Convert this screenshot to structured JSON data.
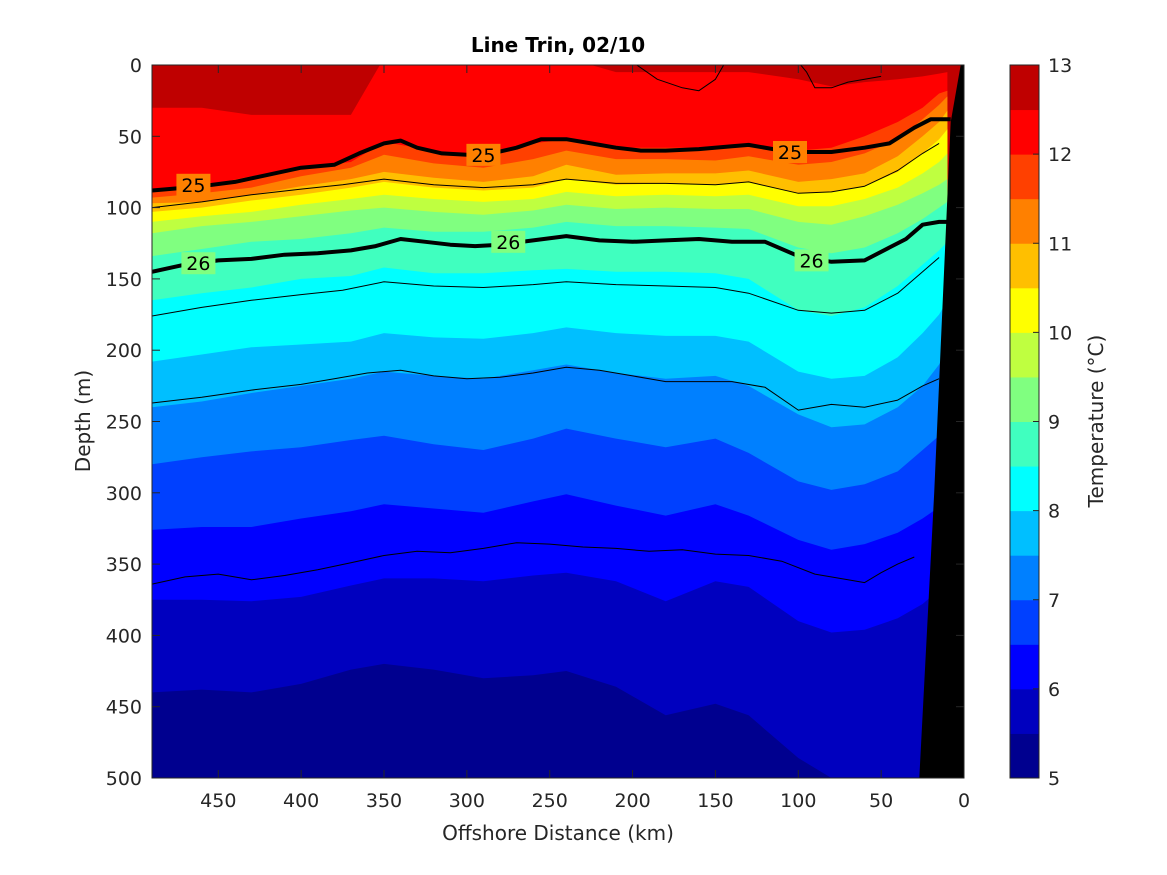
{
  "chart_data": {
    "type": "contourf",
    "title": "Line Trin, 02/10",
    "xlabel": "Offshore Distance (km)",
    "ylabel": "Depth (m)",
    "colorbar_label": "Temperature (°C)",
    "xlim": [
      490,
      0
    ],
    "x_reversed": true,
    "ylim": [
      0,
      500
    ],
    "y_reversed": true,
    "xticks": [
      450,
      400,
      350,
      300,
      250,
      200,
      150,
      100,
      50,
      0
    ],
    "yticks": [
      0,
      50,
      100,
      150,
      200,
      250,
      300,
      350,
      400,
      450,
      500
    ],
    "colorbar": {
      "min": 5,
      "max": 13,
      "step": 0.5,
      "ticks": [
        5,
        6,
        7,
        8,
        9,
        10,
        11,
        12,
        13
      ],
      "colormap": [
        "#00008f",
        "#0000bf",
        "#0000ff",
        "#0040ff",
        "#0080ff",
        "#00bfff",
        "#00ffff",
        "#40ffbf",
        "#80ff80",
        "#bfff40",
        "#ffff00",
        "#ffbf00",
        "#ff8000",
        "#ff4000",
        "#ff0000",
        "#bf0000"
      ]
    },
    "temperature_isotherms": {
      "distances": [
        490,
        460,
        430,
        400,
        370,
        350,
        320,
        290,
        260,
        240,
        210,
        180,
        150,
        130,
        100,
        80,
        60,
        40,
        25,
        15,
        10
      ],
      "levels": [
        {
          "value": 12.0,
          "depths": [
            30,
            30,
            35,
            35,
            35,
            -5,
            -5,
            -5,
            -5,
            -5,
            5,
            5,
            5,
            5,
            10,
            15,
            12,
            10,
            8,
            6,
            5
          ]
        },
        {
          "value": 11.5,
          "depths": [
            88,
            85,
            78,
            72,
            68,
            54,
            60,
            65,
            55,
            52,
            58,
            58,
            58,
            56,
            60,
            58,
            50,
            40,
            30,
            20,
            18
          ]
        },
        {
          "value": 11.0,
          "depths": [
            93,
            90,
            86,
            78,
            72,
            63,
            69,
            72,
            66,
            60,
            66,
            66,
            67,
            64,
            70,
            68,
            62,
            52,
            38,
            28,
            22
          ]
        },
        {
          "value": 10.5,
          "depths": [
            97,
            96,
            91,
            85,
            80,
            75,
            79,
            82,
            78,
            70,
            77,
            76,
            76,
            74,
            82,
            80,
            76,
            64,
            50,
            40,
            32
          ]
        },
        {
          "value": 10.0,
          "depths": [
            103,
            100,
            95,
            91,
            86,
            82,
            86,
            88,
            86,
            80,
            84,
            83,
            84,
            82,
            90,
            89,
            85,
            75,
            62,
            52,
            45
          ]
        },
        {
          "value": 9.5,
          "depths": [
            110,
            106,
            103,
            98,
            94,
            91,
            94,
            96,
            94,
            89,
            92,
            91,
            92,
            91,
            99,
            99,
            94,
            86,
            76,
            68,
            62
          ]
        },
        {
          "value": 9.0,
          "depths": [
            118,
            113,
            110,
            106,
            102,
            100,
            103,
            105,
            102,
            98,
            101,
            100,
            101,
            101,
            110,
            112,
            106,
            98,
            90,
            84,
            80
          ]
        },
        {
          "value": 8.5,
          "depths": [
            134,
            129,
            124,
            122,
            118,
            114,
            117,
            117,
            114,
            110,
            113,
            113,
            114,
            115,
            128,
            132,
            128,
            118,
            108,
            100,
            96
          ]
        },
        {
          "value": 8.0,
          "depths": [
            165,
            160,
            156,
            150,
            148,
            142,
            146,
            146,
            144,
            143,
            145,
            145,
            146,
            150,
            172,
            176,
            170,
            155,
            140,
            130,
            124
          ]
        },
        {
          "value": 7.5,
          "depths": [
            208,
            203,
            198,
            196,
            194,
            188,
            191,
            192,
            188,
            184,
            188,
            190,
            190,
            194,
            215,
            220,
            218,
            205,
            188,
            175,
            165
          ]
        },
        {
          "value": 7.0,
          "depths": [
            240,
            236,
            230,
            225,
            220,
            215,
            218,
            220,
            214,
            210,
            216,
            220,
            218,
            225,
            245,
            254,
            252,
            240,
            225,
            210,
            200
          ]
        },
        {
          "value": 6.5,
          "depths": [
            280,
            275,
            271,
            268,
            263,
            260,
            266,
            270,
            262,
            255,
            262,
            268,
            262,
            272,
            292,
            298,
            294,
            285,
            270,
            260,
            250
          ]
        },
        {
          "value": 6.0,
          "depths": [
            326,
            324,
            324,
            318,
            313,
            308,
            311,
            314,
            306,
            301,
            309,
            316,
            308,
            316,
            333,
            340,
            336,
            328,
            318,
            310,
            305
          ]
        },
        {
          "value": 5.5,
          "depths": [
            375,
            375,
            376,
            373,
            365,
            360,
            360,
            362,
            358,
            356,
            362,
            376,
            362,
            366,
            390,
            398,
            396,
            388,
            378,
            368,
            362
          ]
        },
        {
          "value": 5.0,
          "depths": [
            440,
            438,
            440,
            434,
            424,
            420,
            424,
            430,
            428,
            425,
            436,
            456,
            448,
            456,
            486,
            500,
            510,
            510,
            510,
            510,
            510
          ]
        }
      ]
    },
    "density_contours": {
      "levels": [
        {
          "label": "25",
          "labeled": true,
          "x": [
            490,
            460,
            440,
            420,
            400,
            380,
            365,
            350,
            340,
            330,
            315,
            300,
            285,
            270,
            255,
            240,
            225,
            210,
            195,
            180,
            160,
            140,
            130,
            110,
            95,
            80,
            60,
            45,
            30,
            20,
            8
          ],
          "depth": [
            88,
            85,
            82,
            77,
            72,
            70,
            62,
            55,
            53,
            58,
            62,
            63,
            62,
            58,
            52,
            52,
            55,
            58,
            60,
            60,
            59,
            57,
            56,
            60,
            61,
            61,
            58,
            55,
            44,
            38,
            38
          ],
          "label_x": [
            465,
            290,
            105
          ],
          "label_y": [
            84,
            63,
            61
          ]
        },
        {
          "label": "26",
          "labeled": true,
          "x": [
            490,
            470,
            450,
            430,
            410,
            390,
            370,
            355,
            340,
            325,
            310,
            295,
            280,
            260,
            240,
            220,
            200,
            180,
            160,
            140,
            120,
            100,
            80,
            60,
            45,
            35,
            25,
            15,
            8
          ],
          "depth": [
            145,
            140,
            137,
            136,
            133,
            132,
            130,
            127,
            122,
            124,
            126,
            127,
            126,
            123,
            120,
            123,
            124,
            123,
            122,
            124,
            124,
            134,
            138,
            137,
            128,
            122,
            112,
            110,
            110
          ],
          "label_x": [
            462,
            275,
            92
          ],
          "label_y": [
            139,
            124,
            137
          ]
        },
        {
          "label": "",
          "labeled": false,
          "x": [
            490,
            460,
            430,
            400,
            375,
            350,
            320,
            290,
            260,
            240,
            210,
            180,
            150,
            130,
            100,
            80,
            60,
            40,
            25,
            15
          ],
          "depth": [
            100,
            96,
            91,
            87,
            84,
            80,
            84,
            86,
            84,
            80,
            83,
            83,
            84,
            82,
            90,
            89,
            85,
            74,
            62,
            55
          ]
        },
        {
          "label": "",
          "labeled": false,
          "x": [
            490,
            460,
            430,
            400,
            375,
            350,
            320,
            290,
            260,
            240,
            210,
            180,
            150,
            130,
            100,
            80,
            60,
            40,
            25,
            15
          ],
          "depth": [
            176,
            170,
            165,
            161,
            158,
            152,
            155,
            156,
            154,
            152,
            154,
            155,
            156,
            160,
            172,
            174,
            172,
            160,
            145,
            135
          ]
        },
        {
          "label": "",
          "labeled": false,
          "x": [
            490,
            460,
            430,
            400,
            380,
            360,
            340,
            320,
            300,
            280,
            260,
            240,
            220,
            200,
            180,
            160,
            140,
            120,
            100,
            80,
            60,
            40,
            25,
            15
          ],
          "depth": [
            237,
            233,
            228,
            224,
            220,
            216,
            214,
            218,
            220,
            219,
            216,
            212,
            214,
            218,
            222,
            222,
            222,
            226,
            242,
            238,
            240,
            235,
            225,
            220
          ]
        },
        {
          "label": "",
          "labeled": false,
          "x": [
            490,
            470,
            450,
            430,
            410,
            390,
            370,
            350,
            330,
            310,
            290,
            270,
            250,
            230,
            210,
            190,
            170,
            150,
            130,
            110,
            90,
            70,
            60,
            50,
            40,
            30
          ],
          "depth": [
            364,
            359,
            357,
            361,
            358,
            354,
            349,
            344,
            341,
            342,
            339,
            335,
            336,
            338,
            339,
            341,
            340,
            343,
            344,
            348,
            357,
            361,
            363,
            356,
            350,
            345
          ]
        },
        {
          "label": "",
          "labeled": false,
          "x": [
            210,
            200,
            185,
            170,
            160,
            150,
            145
          ],
          "depth": [
            -2,
            -2,
            10,
            16,
            18,
            10,
            0
          ]
        },
        {
          "label": "",
          "labeled": false,
          "x": [
            100,
            95,
            90,
            80,
            70,
            60,
            50
          ],
          "depth": [
            -2,
            5,
            16,
            16,
            12,
            10,
            8
          ]
        }
      ]
    },
    "bathymetry": {
      "fill": "#000000",
      "x": [
        0,
        2,
        8,
        18,
        27,
        27,
        0
      ],
      "depth": [
        0,
        0,
        40,
        300,
        500,
        500,
        500
      ]
    }
  }
}
